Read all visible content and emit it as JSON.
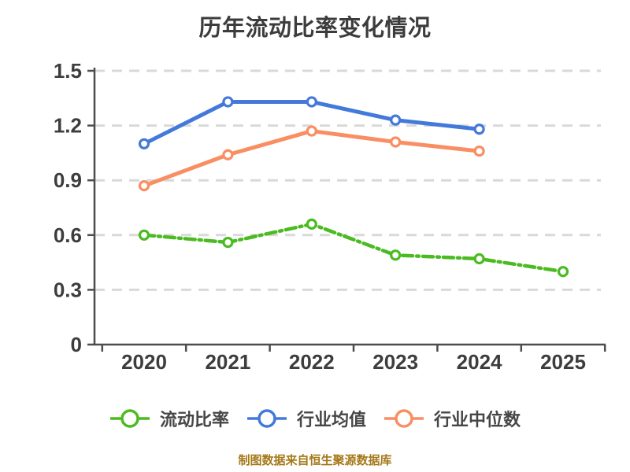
{
  "chart_data": {
    "type": "line",
    "title": "历年流动比率变化情况",
    "x_categories": [
      "2020",
      "2021",
      "2022",
      "2023",
      "2024",
      "2025"
    ],
    "series": [
      {
        "name": "流动比率",
        "slug": "current-ratio",
        "color": "#4ABB20",
        "line_style": "dashdot",
        "marker": "circle",
        "values": [
          0.6,
          0.56,
          0.66,
          0.49,
          0.47,
          0.4
        ]
      },
      {
        "name": "行业均值",
        "slug": "industry-average",
        "color": "#4379DB",
        "line_style": "solid",
        "marker": "circle",
        "values": [
          1.1,
          1.33,
          1.33,
          1.23,
          1.18,
          null
        ]
      },
      {
        "name": "行业中位数",
        "slug": "industry-median",
        "color": "#F98E62",
        "line_style": "solid",
        "marker": "circle",
        "values": [
          0.87,
          1.04,
          1.17,
          1.11,
          1.06,
          null
        ]
      }
    ],
    "xlabel": "",
    "ylabel": "",
    "ylim": [
      0,
      1.5
    ],
    "yticks": [
      "0",
      "0.3",
      "0.6",
      "0.9",
      "1.2",
      "1.5"
    ],
    "grid": true,
    "grid_color": "#D9D9D9",
    "axis_color": "#4D4D4D",
    "tick_label_color": "#3D3D3D",
    "legend_position": "bottom",
    "marker_fill": "#FFFFFF"
  },
  "footer": {
    "text": "制图数据来自恒生聚源数据库",
    "color": "#A5791A"
  }
}
